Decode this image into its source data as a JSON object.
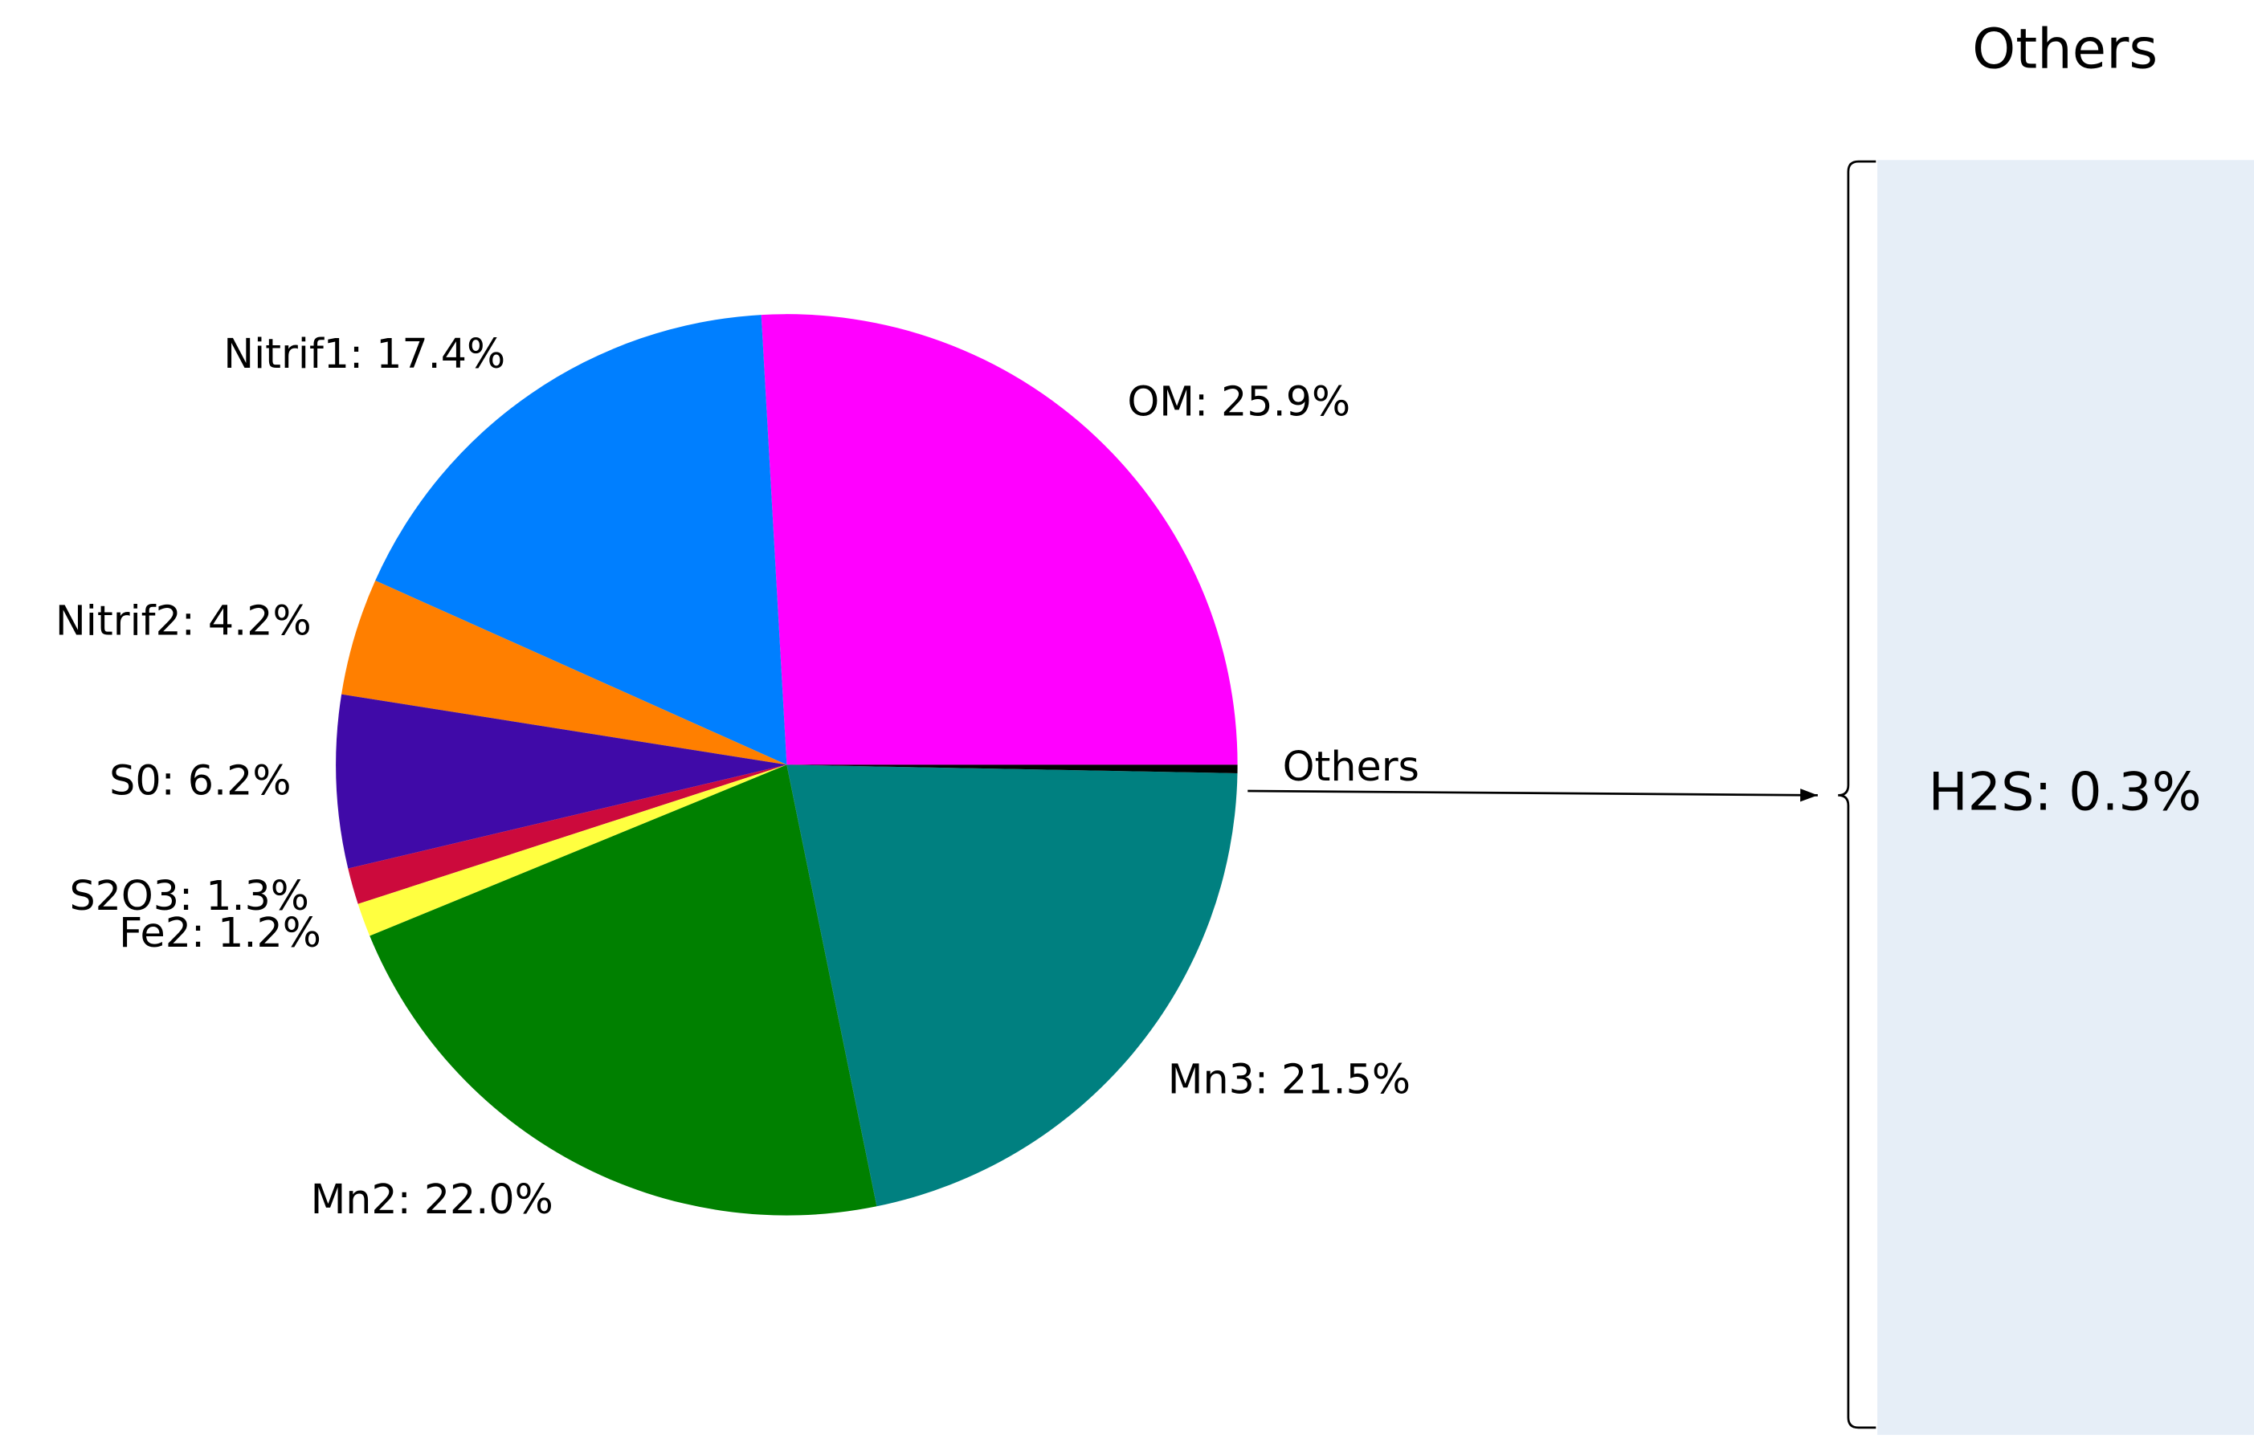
{
  "chart_data": {
    "type": "pie",
    "values": [
      25.9,
      17.4,
      4.2,
      6.2,
      1.3,
      1.2,
      22.0,
      21.5,
      0.3
    ],
    "value_labels": [
      "OM: 25.9%",
      "Nitrif1: 17.4%",
      "Nitrif2: 4.2%",
      "S0: 6.2%",
      "S2O3: 1.3%",
      "Fe2: 1.2%",
      "Mn2: 22.0%",
      "Mn3: 21.5%",
      "Others"
    ],
    "colors": [
      "#ff00ff",
      "#007fff",
      "#ff7f00",
      "#400aa8",
      "#cc0a3c",
      "#ffff40",
      "#008000",
      "#008080",
      "#000000"
    ],
    "breakdown": {
      "title": "Others",
      "values": [
        0.3
      ],
      "value_labels": [
        "H2S: 0.3%"
      ],
      "color": "#e6eef7"
    }
  }
}
